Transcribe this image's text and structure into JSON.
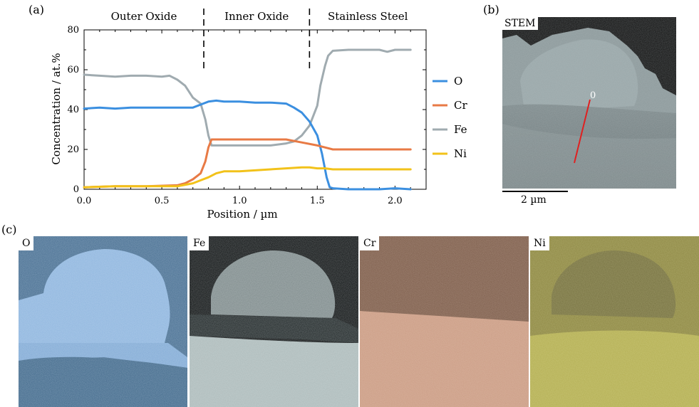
{
  "panels": {
    "a": "(a)",
    "b": "(b)",
    "c": "(c)"
  },
  "chart_data": {
    "type": "line",
    "title": "",
    "xlabel": "Position / µm",
    "ylabel": "Concentration / at.%",
    "xlim": [
      0,
      2.2
    ],
    "ylim": [
      0,
      80
    ],
    "xticks": [
      0.0,
      0.5,
      1.0,
      1.5,
      2.0
    ],
    "xtick_labels": [
      "0.0",
      "0.5",
      "1.0",
      "1.5",
      "2.0"
    ],
    "yticks": [
      0,
      20,
      40,
      60,
      80
    ],
    "ytick_labels": [
      "0",
      "20",
      "40",
      "60",
      "80"
    ],
    "grid": false,
    "legend": "right",
    "regions": [
      {
        "label": "Outer Oxide",
        "x_start": 0.0,
        "x_end": 0.77
      },
      {
        "label": "Inner Oxide",
        "x_start": 0.77,
        "x_end": 1.45
      },
      {
        "label": "Stainless Steel",
        "x_start": 1.45,
        "x_end": 2.2
      }
    ],
    "boundaries": [
      0.77,
      1.45
    ],
    "series": [
      {
        "name": "O",
        "color": "#3b8fe0",
        "x": [
          0.0,
          0.1,
          0.2,
          0.3,
          0.4,
          0.5,
          0.6,
          0.7,
          0.75,
          0.8,
          0.85,
          0.9,
          1.0,
          1.1,
          1.2,
          1.3,
          1.35,
          1.4,
          1.45,
          1.5,
          1.53,
          1.56,
          1.58,
          1.6,
          1.7,
          1.8,
          1.9,
          2.0,
          2.1
        ],
        "y": [
          40.5,
          41,
          40.5,
          41,
          41,
          41,
          41,
          41,
          42.5,
          44,
          44.5,
          44,
          44,
          43.5,
          43.5,
          43,
          41,
          38.5,
          34,
          27,
          18,
          6,
          1,
          0.5,
          0,
          0,
          0,
          0.5,
          0
        ]
      },
      {
        "name": "Cr",
        "color": "#e87a45",
        "x": [
          0.0,
          0.2,
          0.4,
          0.6,
          0.65,
          0.7,
          0.75,
          0.78,
          0.8,
          0.82,
          0.9,
          1.0,
          1.1,
          1.2,
          1.3,
          1.4,
          1.5,
          1.55,
          1.6,
          1.7,
          1.8,
          1.9,
          2.0,
          2.1
        ],
        "y": [
          1,
          1.5,
          1.5,
          2,
          3,
          5,
          8,
          14,
          21,
          25,
          25,
          25,
          25,
          25,
          25,
          23.5,
          22,
          21,
          20,
          20,
          20,
          20,
          20,
          20
        ]
      },
      {
        "name": "Fe",
        "color": "#a0abb0",
        "x": [
          0.0,
          0.1,
          0.2,
          0.3,
          0.4,
          0.5,
          0.55,
          0.6,
          0.65,
          0.7,
          0.75,
          0.78,
          0.8,
          0.82,
          0.9,
          1.0,
          1.1,
          1.2,
          1.3,
          1.35,
          1.4,
          1.45,
          1.5,
          1.52,
          1.55,
          1.57,
          1.6,
          1.7,
          1.8,
          1.9,
          1.95,
          2.0,
          2.1
        ],
        "y": [
          57.5,
          57,
          56.5,
          57,
          57,
          56.5,
          57,
          55,
          52,
          46,
          43,
          35,
          27,
          22,
          22,
          22,
          22,
          22,
          23,
          24,
          27,
          32,
          42,
          52,
          62,
          67,
          69.5,
          70,
          70,
          70,
          69,
          70,
          70
        ]
      },
      {
        "name": "Ni",
        "color": "#f2c21a",
        "x": [
          0.0,
          0.2,
          0.4,
          0.6,
          0.7,
          0.75,
          0.8,
          0.85,
          0.9,
          1.0,
          1.1,
          1.2,
          1.3,
          1.4,
          1.45,
          1.5,
          1.55,
          1.6,
          1.7,
          1.8,
          1.9,
          2.0,
          2.1
        ],
        "y": [
          1,
          1.5,
          1.5,
          1.5,
          3,
          4.5,
          6,
          8,
          9,
          9,
          9.5,
          10,
          10.5,
          11,
          11,
          10.5,
          10.5,
          10,
          10,
          10,
          10,
          10,
          10
        ]
      }
    ]
  },
  "stem": {
    "label": "STEM",
    "marker": "0",
    "line_color": "#e02020",
    "scalebar_label": "2 µm"
  },
  "maps": [
    {
      "label": "O",
      "color": "#5a8ebf"
    },
    {
      "label": "Fe",
      "color": "#b9c6c4"
    },
    {
      "label": "Cr",
      "color": "#c9957a"
    },
    {
      "label": "Ni",
      "color": "#c9c157"
    }
  ]
}
